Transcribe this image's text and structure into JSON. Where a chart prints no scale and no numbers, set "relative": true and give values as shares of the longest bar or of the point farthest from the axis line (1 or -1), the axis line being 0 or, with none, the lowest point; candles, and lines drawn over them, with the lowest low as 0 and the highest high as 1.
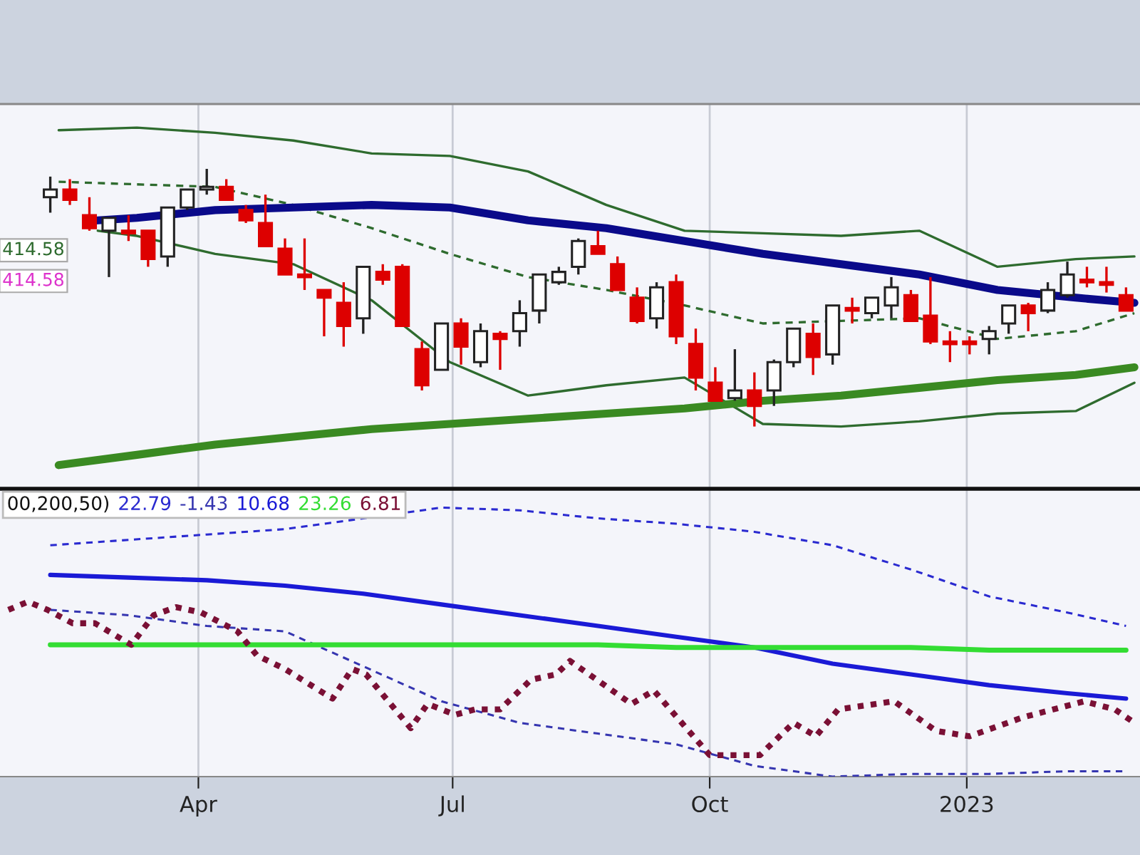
{
  "chart_data": [
    {
      "type": "candlestick",
      "relative": true,
      "grid": "x",
      "tick_labels": false,
      "xlim": [
        "2022-01-20",
        "2023-03-04"
      ],
      "xticks": [
        {
          "value": "2022-04-01",
          "label": null
        },
        {
          "value": "2022-07-01",
          "label": null
        },
        {
          "value": "2022-10-01",
          "label": null
        },
        {
          "value": "2023-01-01",
          "label": null
        }
      ],
      "annotations": [
        "414.58",
        "414.58"
      ],
      "x": [
        "2022-02-07",
        "2022-02-14",
        "2022-02-21",
        "2022-02-28",
        "2022-03-07",
        "2022-03-14",
        "2022-03-21",
        "2022-03-28",
        "2022-04-04",
        "2022-04-11",
        "2022-04-18",
        "2022-04-25",
        "2022-05-02",
        "2022-05-09",
        "2022-05-16",
        "2022-05-23",
        "2022-05-30",
        "2022-06-06",
        "2022-06-13",
        "2022-06-20",
        "2022-06-27",
        "2022-07-04",
        "2022-07-11",
        "2022-07-18",
        "2022-07-25",
        "2022-08-01",
        "2022-08-08",
        "2022-08-15",
        "2022-08-22",
        "2022-08-29",
        "2022-09-05",
        "2022-09-12",
        "2022-09-19",
        "2022-09-26",
        "2022-10-03",
        "2022-10-10",
        "2022-10-17",
        "2022-10-24",
        "2022-10-31",
        "2022-11-07",
        "2022-11-14",
        "2022-11-21",
        "2022-11-28",
        "2022-12-05",
        "2022-12-12",
        "2022-12-19",
        "2022-12-26",
        "2023-01-02",
        "2023-01-09",
        "2023-01-16",
        "2023-01-23",
        "2023-01-30",
        "2023-02-06",
        "2023-02-13",
        "2023-02-20",
        "2023-02-27"
      ],
      "ohlc": [
        [
          0.89,
          0.97,
          0.83,
          0.92
        ],
        [
          0.92,
          0.96,
          0.86,
          0.88
        ],
        [
          0.82,
          0.89,
          0.76,
          0.77
        ],
        [
          0.76,
          0.81,
          0.58,
          0.81
        ],
        [
          0.76,
          0.82,
          0.72,
          0.75
        ],
        [
          0.76,
          0.76,
          0.62,
          0.65
        ],
        [
          0.66,
          0.85,
          0.62,
          0.85
        ],
        [
          0.85,
          0.92,
          0.84,
          0.92
        ],
        [
          0.92,
          1.0,
          0.9,
          0.93
        ],
        [
          0.93,
          0.96,
          0.88,
          0.88
        ],
        [
          0.84,
          0.86,
          0.79,
          0.8
        ],
        [
          0.79,
          0.9,
          0.7,
          0.7
        ],
        [
          0.69,
          0.73,
          0.59,
          0.59
        ],
        [
          0.59,
          0.73,
          0.53,
          0.58
        ],
        [
          0.53,
          0.53,
          0.35,
          0.5
        ],
        [
          0.48,
          0.56,
          0.31,
          0.39
        ],
        [
          0.42,
          0.62,
          0.36,
          0.62
        ],
        [
          0.6,
          0.63,
          0.55,
          0.57
        ],
        [
          0.62,
          0.63,
          0.39,
          0.39
        ],
        [
          0.3,
          0.33,
          0.14,
          0.16
        ],
        [
          0.22,
          0.4,
          0.22,
          0.4
        ],
        [
          0.4,
          0.42,
          0.24,
          0.31
        ],
        [
          0.25,
          0.4,
          0.23,
          0.37
        ],
        [
          0.36,
          0.37,
          0.22,
          0.34
        ],
        [
          0.37,
          0.49,
          0.31,
          0.44
        ],
        [
          0.45,
          0.59,
          0.4,
          0.59
        ],
        [
          0.56,
          0.62,
          0.55,
          0.6
        ],
        [
          0.62,
          0.73,
          0.59,
          0.72
        ],
        [
          0.7,
          0.76,
          0.67,
          0.67
        ],
        [
          0.63,
          0.66,
          0.53,
          0.53
        ],
        [
          0.5,
          0.54,
          0.4,
          0.41
        ],
        [
          0.42,
          0.56,
          0.38,
          0.54
        ],
        [
          0.56,
          0.59,
          0.32,
          0.35
        ],
        [
          0.32,
          0.38,
          0.14,
          0.19
        ],
        [
          0.17,
          0.23,
          0.1,
          0.1
        ],
        [
          0.11,
          0.3,
          0.1,
          0.14
        ],
        [
          0.14,
          0.21,
          0.0,
          0.08
        ],
        [
          0.14,
          0.26,
          0.08,
          0.25
        ],
        [
          0.25,
          0.38,
          0.23,
          0.38
        ],
        [
          0.36,
          0.4,
          0.2,
          0.27
        ],
        [
          0.28,
          0.47,
          0.24,
          0.47
        ],
        [
          0.46,
          0.5,
          0.4,
          0.45
        ],
        [
          0.44,
          0.5,
          0.42,
          0.5
        ],
        [
          0.47,
          0.58,
          0.42,
          0.54
        ],
        [
          0.51,
          0.53,
          0.41,
          0.41
        ],
        [
          0.43,
          0.58,
          0.32,
          0.33
        ],
        [
          0.33,
          0.37,
          0.25,
          0.32
        ],
        [
          0.33,
          0.35,
          0.28,
          0.32
        ],
        [
          0.34,
          0.39,
          0.28,
          0.37
        ],
        [
          0.4,
          0.47,
          0.36,
          0.47
        ],
        [
          0.47,
          0.48,
          0.37,
          0.44
        ],
        [
          0.45,
          0.56,
          0.44,
          0.53
        ],
        [
          0.51,
          0.64,
          0.5,
          0.59
        ],
        [
          0.57,
          0.62,
          0.54,
          0.56
        ],
        [
          0.56,
          0.62,
          0.52,
          0.55
        ],
        [
          0.51,
          0.54,
          0.45,
          0.45
        ]
      ],
      "colors": [
        "#ffffff",
        "#dd0000",
        "#dd0000",
        "#ffffff",
        "#dd0000",
        "#dd0000",
        "#ffffff",
        "#ffffff",
        "#ffffff",
        "#dd0000",
        "#dd0000",
        "#dd0000",
        "#dd0000",
        "#dd0000",
        "#dd0000",
        "#dd0000",
        "#ffffff",
        "#dd0000",
        "#dd0000",
        "#dd0000",
        "#ffffff",
        "#dd0000",
        "#ffffff",
        "#dd0000",
        "#ffffff",
        "#ffffff",
        "#ffffff",
        "#ffffff",
        "#dd0000",
        "#dd0000",
        "#dd0000",
        "#ffffff",
        "#dd0000",
        "#dd0000",
        "#dd0000",
        "#ffffff",
        "#dd0000",
        "#ffffff",
        "#ffffff",
        "#dd0000",
        "#ffffff",
        "#dd0000",
        "#ffffff",
        "#ffffff",
        "#dd0000",
        "#dd0000",
        "#dd0000",
        "#dd0000",
        "#ffffff",
        "#ffffff",
        "#dd0000",
        "#ffffff",
        "#ffffff",
        "#dd0000",
        "#dd0000",
        "#dd0000"
      ],
      "series": [
        {
          "type": "line",
          "color": "#2e6b2e",
          "line_style": "solid",
          "x": [
            "2022-02-10",
            "2022-03-10",
            "2022-04-07",
            "2022-05-05",
            "2022-06-02",
            "2022-06-30",
            "2022-07-28",
            "2022-08-25",
            "2022-09-22",
            "2022-10-20",
            "2022-11-17",
            "2022-12-15",
            "2023-01-12",
            "2023-02-09",
            "2023-03-02"
          ],
          "values": [
            1.15,
            1.16,
            1.14,
            1.11,
            1.06,
            1.05,
            0.99,
            0.86,
            0.76,
            0.75,
            0.74,
            0.76,
            0.62,
            0.65,
            0.66
          ]
        },
        {
          "type": "line",
          "color": "#2e6b2e",
          "line_style": "dashed",
          "x": [
            "2022-02-10",
            "2022-03-10",
            "2022-04-07",
            "2022-05-05",
            "2022-06-02",
            "2022-06-30",
            "2022-07-28",
            "2022-08-25",
            "2022-09-22",
            "2022-10-20",
            "2022-11-17",
            "2022-12-15",
            "2023-01-12",
            "2023-02-09",
            "2023-03-02"
          ],
          "values": [
            0.95,
            0.94,
            0.93,
            0.86,
            0.77,
            0.67,
            0.58,
            0.53,
            0.47,
            0.4,
            0.41,
            0.42,
            0.34,
            0.37,
            0.44
          ]
        },
        {
          "type": "line",
          "color": "#2e6b2e",
          "line_style": "solid",
          "x": [
            "2022-02-24",
            "2022-03-10",
            "2022-04-07",
            "2022-05-05",
            "2022-06-02",
            "2022-06-30",
            "2022-07-28",
            "2022-08-25",
            "2022-09-22",
            "2022-10-20",
            "2022-11-17",
            "2022-12-15",
            "2023-01-12",
            "2023-02-09",
            "2023-03-02"
          ],
          "values": [
            0.76,
            0.74,
            0.67,
            0.63,
            0.49,
            0.25,
            0.12,
            0.16,
            0.19,
            0.01,
            0.0,
            0.02,
            0.05,
            0.06,
            0.17
          ]
        },
        {
          "type": "line",
          "color": "#0a0a8a",
          "line_style": "solid",
          "x": [
            "2022-02-24",
            "2022-03-10",
            "2022-04-07",
            "2022-05-05",
            "2022-06-02",
            "2022-06-30",
            "2022-07-28",
            "2022-08-25",
            "2022-09-22",
            "2022-10-20",
            "2022-11-17",
            "2022-12-15",
            "2023-01-12",
            "2023-02-09",
            "2023-03-02"
          ],
          "values": [
            0.8,
            0.81,
            0.84,
            0.85,
            0.86,
            0.85,
            0.8,
            0.77,
            0.72,
            0.67,
            0.63,
            0.59,
            0.53,
            0.5,
            0.48
          ]
        },
        {
          "type": "line",
          "color": "#3a8a22",
          "line_style": "solid",
          "x": [
            "2022-02-10",
            "2022-03-10",
            "2022-04-07",
            "2022-05-05",
            "2022-06-02",
            "2022-06-30",
            "2022-07-28",
            "2022-08-25",
            "2022-09-22",
            "2022-10-20",
            "2022-11-17",
            "2022-12-15",
            "2023-01-12",
            "2023-02-09",
            "2023-03-02"
          ],
          "values": [
            -0.15,
            -0.11,
            -0.07,
            -0.04,
            -0.01,
            0.01,
            0.03,
            0.05,
            0.07,
            0.1,
            0.12,
            0.15,
            0.18,
            0.2,
            0.23
          ]
        }
      ]
    },
    {
      "type": "line",
      "relative": true,
      "grid": "x",
      "tick_labels": "x",
      "legend": "top left",
      "legend_title": "00,200,50)",
      "xlim": [
        "2022-01-20",
        "2023-03-04"
      ],
      "xticks": [
        {
          "value": "2022-04-01",
          "label": "Apr"
        },
        {
          "value": "2022-07-01",
          "label": "Jul"
        },
        {
          "value": "2022-10-01",
          "label": "Oct"
        },
        {
          "value": "2023-01-01",
          "label": "2023"
        }
      ],
      "series": [
        {
          "name": "22.79",
          "color": "#2a2ad0",
          "line_style": "dashed",
          "x": [
            "2022-02-07",
            "2022-03-07",
            "2022-04-04",
            "2022-05-02",
            "2022-05-30",
            "2022-06-27",
            "2022-07-25",
            "2022-08-22",
            "2022-09-19",
            "2022-10-17",
            "2022-11-14",
            "2022-12-12",
            "2023-01-09",
            "2023-02-06",
            "2023-02-27"
          ],
          "values": [
            0.86,
            0.88,
            0.9,
            0.92,
            0.96,
            1.0,
            0.99,
            0.96,
            0.94,
            0.91,
            0.86,
            0.77,
            0.67,
            0.61,
            0.56
          ]
        },
        {
          "name": "-1.43",
          "color": "#3535b0",
          "line_style": "dashed",
          "x": [
            "2022-02-07",
            "2022-03-07",
            "2022-04-04",
            "2022-05-02",
            "2022-05-30",
            "2022-06-27",
            "2022-07-25",
            "2022-08-22",
            "2022-09-19",
            "2022-10-17",
            "2022-11-14",
            "2022-12-12",
            "2023-01-09",
            "2023-02-06",
            "2023-02-27"
          ],
          "values": [
            0.62,
            0.6,
            0.56,
            0.54,
            0.41,
            0.28,
            0.2,
            0.16,
            0.12,
            0.04,
            0.0,
            0.01,
            0.01,
            0.02,
            0.02
          ]
        },
        {
          "name": "10.68",
          "color": "#1a1ad6",
          "line_style": "solid",
          "x": [
            "2022-02-07",
            "2022-03-07",
            "2022-04-04",
            "2022-05-02",
            "2022-05-30",
            "2022-06-27",
            "2022-07-25",
            "2022-08-22",
            "2022-09-19",
            "2022-10-17",
            "2022-11-14",
            "2022-12-12",
            "2023-01-09",
            "2023-02-06",
            "2023-02-27"
          ],
          "values": [
            0.75,
            0.74,
            0.73,
            0.71,
            0.68,
            0.64,
            0.6,
            0.56,
            0.52,
            0.48,
            0.42,
            0.38,
            0.34,
            0.31,
            0.29
          ]
        },
        {
          "name": "23.26",
          "color": "#33dd33",
          "line_style": "solid",
          "x": [
            "2022-02-07",
            "2022-03-07",
            "2022-04-04",
            "2022-05-02",
            "2022-05-30",
            "2022-06-27",
            "2022-07-25",
            "2022-08-22",
            "2022-09-19",
            "2022-10-17",
            "2022-11-14",
            "2022-12-12",
            "2023-01-09",
            "2023-02-06",
            "2023-02-27"
          ],
          "values": [
            0.49,
            0.49,
            0.49,
            0.49,
            0.49,
            0.49,
            0.49,
            0.49,
            0.48,
            0.48,
            0.48,
            0.48,
            0.47,
            0.47,
            0.47
          ]
        },
        {
          "name": "6.81",
          "color": "#7a1035",
          "line_style": "dotted",
          "x": [
            "2022-01-23",
            "2022-01-30",
            "2022-02-06",
            "2022-02-15",
            "2022-02-23",
            "2022-03-08",
            "2022-03-16",
            "2022-03-24",
            "2022-04-02",
            "2022-04-15",
            "2022-04-22",
            "2022-05-02",
            "2022-05-19",
            "2022-05-26",
            "2022-05-31",
            "2022-06-16",
            "2022-06-22",
            "2022-07-02",
            "2022-07-09",
            "2022-07-18",
            "2022-07-29",
            "2022-08-07",
            "2022-08-12",
            "2022-09-03",
            "2022-09-11",
            "2022-10-01",
            "2022-10-19",
            "2022-10-31",
            "2022-11-08",
            "2022-11-16",
            "2022-12-06",
            "2022-12-21",
            "2023-01-02",
            "2023-01-21",
            "2023-02-12",
            "2023-02-23",
            "2023-03-02"
          ],
          "values": [
            0.62,
            0.65,
            0.62,
            0.57,
            0.57,
            0.49,
            0.6,
            0.63,
            0.61,
            0.54,
            0.45,
            0.4,
            0.29,
            0.4,
            0.38,
            0.18,
            0.27,
            0.23,
            0.25,
            0.25,
            0.36,
            0.38,
            0.43,
            0.27,
            0.32,
            0.08,
            0.08,
            0.2,
            0.15,
            0.25,
            0.28,
            0.17,
            0.15,
            0.22,
            0.28,
            0.25,
            0.2
          ]
        }
      ]
    }
  ]
}
